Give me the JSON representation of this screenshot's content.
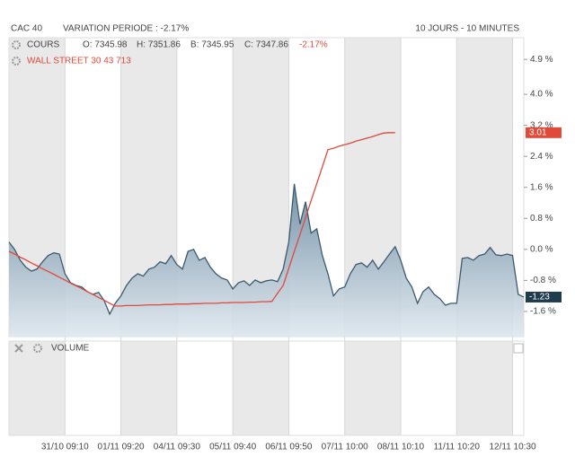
{
  "chart_data": {
    "type": "line",
    "title": "CAC 40",
    "subtitle": "VARIATION PERIODE : -2.17%",
    "period": "10 JOURS - 10 MINUTES",
    "ohlc": [
      "O: 7345.98",
      "H: 7351.86",
      "B: 7345.95",
      "C: 7347.86"
    ],
    "change": "-2.17%",
    "volume_label": "VOLUME",
    "categories": [
      null,
      null,
      null,
      null,
      null,
      null,
      null,
      null,
      null,
      null,
      "31/10 09:10",
      null,
      null,
      null,
      null,
      null,
      null,
      null,
      null,
      null,
      "01/11 09:20",
      null,
      null,
      null,
      null,
      null,
      null,
      null,
      null,
      null,
      "04/11 09:30",
      null,
      null,
      null,
      null,
      null,
      null,
      null,
      null,
      null,
      "05/11 09:40",
      null,
      null,
      null,
      null,
      null,
      null,
      null,
      null,
      null,
      "06/11 09:50",
      null,
      null,
      null,
      null,
      null,
      null,
      null,
      null,
      null,
      "07/11 10:00",
      null,
      null,
      null,
      null,
      null,
      null,
      null,
      null,
      null,
      "08/11 10:10",
      null,
      null,
      null,
      null,
      null,
      null,
      null,
      null,
      null,
      "11/11 10:20",
      null,
      null,
      null,
      null,
      null,
      null,
      null,
      null,
      null,
      "12/11 10:30",
      null,
      null
    ],
    "series": [
      {
        "name": "COURS",
        "color": "#3d5a6e",
        "fill": "area",
        "values": [
          0.19,
          0,
          -0.28,
          -0.46,
          -0.56,
          -0.51,
          -0.32,
          -0.16,
          -0.09,
          -0.12,
          -0.63,
          -0.86,
          -0.93,
          -0.97,
          -1.09,
          -1.16,
          -1.11,
          -1.32,
          -1.67,
          -1.39,
          -1.2,
          -0.93,
          -0.74,
          -0.63,
          -0.69,
          -0.51,
          -0.46,
          -0.32,
          -0.37,
          -0.16,
          -0.39,
          -0.51,
          -0.05,
          0,
          -0.28,
          -0.21,
          -0.46,
          -0.63,
          -0.74,
          -0.79,
          -1.02,
          -0.86,
          -0.81,
          -0.93,
          -0.79,
          -0.86,
          -0.81,
          -0.79,
          -0.83,
          -0.51,
          0.19,
          1.69,
          0.65,
          1.23,
          0.42,
          0.53,
          -0.16,
          -0.63,
          -1.2,
          -1.02,
          -0.97,
          -0.63,
          -0.39,
          -0.35,
          -0.46,
          -0.28,
          -0.51,
          -0.32,
          -0.12,
          0.07,
          -0.28,
          -0.74,
          -0.97,
          -1.39,
          -1.09,
          -0.97,
          -1.16,
          -1.27,
          -1.44,
          -1.39,
          -1.39,
          -0.23,
          -0.21,
          -0.28,
          -0.16,
          -0.12,
          0.05,
          -0.14,
          -0.16,
          -0.12,
          -0.16,
          -1.16,
          -1.23
        ],
        "label_color": "#1f3b4d"
      },
      {
        "name": "WALL STREET 30 43 713",
        "color": "#e04a3a",
        "values": [
          -0.05,
          -0.12,
          -0.2,
          -0.27,
          -0.35,
          -0.42,
          -0.5,
          -0.57,
          -0.64,
          -0.72,
          -0.79,
          -0.87,
          -0.94,
          -1.01,
          -1.09,
          -1.16,
          -1.24,
          -1.31,
          -1.39,
          -1.46,
          -1.46,
          -1.45,
          -1.45,
          -1.45,
          -1.44,
          -1.43,
          -1.43,
          -1.43,
          -1.42,
          -1.42,
          -1.41,
          -1.41,
          -1.41,
          -1.4,
          -1.4,
          -1.39,
          -1.39,
          -1.39,
          -1.38,
          -1.38,
          -1.37,
          -1.37,
          -1.37,
          -1.36,
          -1.36,
          -1.35,
          -1.35,
          -1.34,
          -1.13,
          -0.93,
          -0.49,
          -0.05,
          0.38,
          0.82,
          1.26,
          1.7,
          2.13,
          2.57,
          2.61,
          2.66,
          2.7,
          2.74,
          2.79,
          2.83,
          2.87,
          2.91,
          2.96,
          3.0,
          3.01,
          3.01,
          null,
          null,
          null,
          null,
          null,
          null,
          null,
          null,
          null,
          null,
          null,
          null,
          null,
          null,
          null,
          null,
          null,
          null,
          null,
          null,
          null,
          null,
          null
        ],
        "label_color": "#e04a3a"
      }
    ],
    "ylim": [
      -2.25,
      5.46
    ],
    "yticks": [
      {
        "value": 4.9,
        "label": "4.9 %"
      },
      {
        "value": 4.0,
        "label": "4.0 %"
      },
      {
        "value": 3.2,
        "label": "3.2 %"
      },
      {
        "value": 2.4,
        "label": "2.4 %"
      },
      {
        "value": 1.6,
        "label": "1.6 %"
      },
      {
        "value": 0.8,
        "label": "0.8 %"
      },
      {
        "value": 0.0,
        "label": "0.0 %"
      },
      {
        "value": -0.8,
        "label": "-0.8 %"
      },
      {
        "value": -1.6,
        "label": "-1.6 %"
      }
    ],
    "grid": false
  }
}
